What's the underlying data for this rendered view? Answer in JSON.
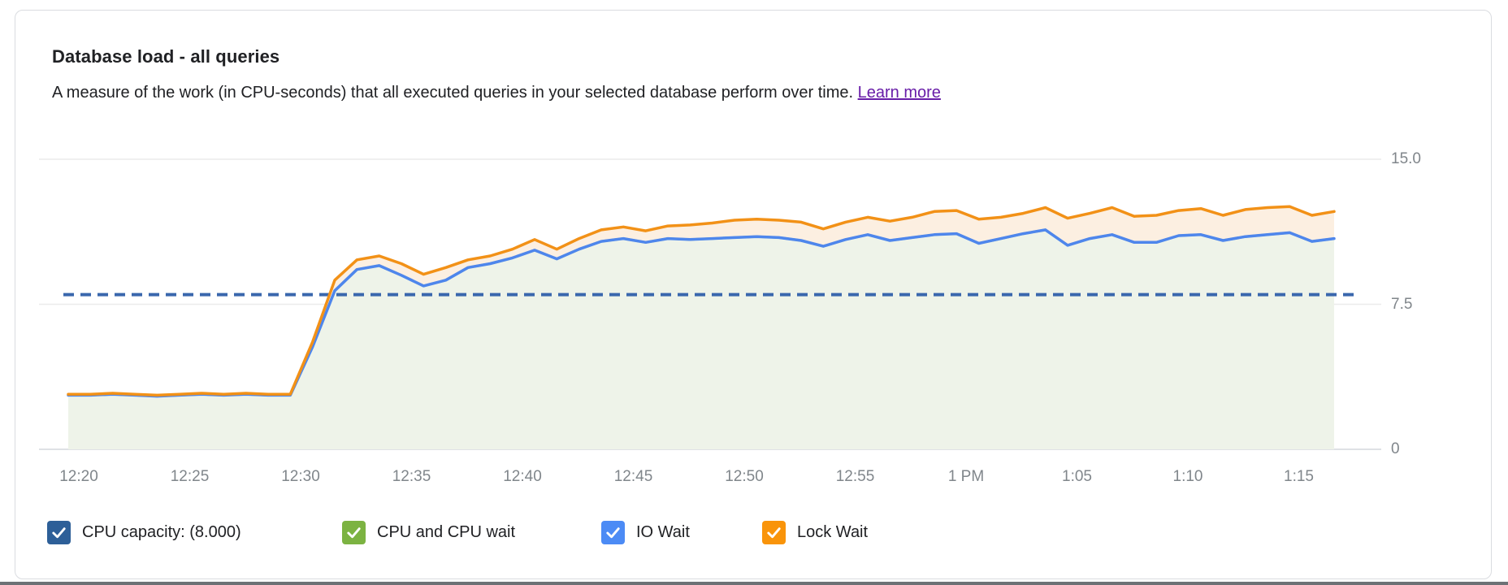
{
  "card": {
    "subtitle": "A measure of the work (in CPU-seconds) that all executed queries in your selected database perform over time.",
    "learn_more": "Learn more"
  },
  "legend": {
    "items": [
      {
        "label": "CPU capacity: (8.000)",
        "color": "#2d5f98",
        "checked": true
      },
      {
        "label": "CPU and CPU wait",
        "color": "#7cb342",
        "checked": true
      },
      {
        "label": "IO Wait",
        "color": "#4c8bf5",
        "checked": true
      },
      {
        "label": "Lock Wait",
        "color": "#f9940a",
        "checked": true
      }
    ]
  },
  "chart_data": {
    "type": "area",
    "title": "Database load - all queries",
    "ylabel": "",
    "xlabel": "",
    "ylim": [
      0,
      15
    ],
    "grid": true,
    "legend_position": "bottom",
    "stacking_note": "stacked area chart; series values below are cumulative stack tops as rendered (CPU-seconds); CPU-and-CPU-wait top visually coincides with IO Wait line",
    "sample_start": "12:19:30 PM",
    "sample_interval_seconds": 60,
    "y_axis": {
      "ticks": [
        {
          "label": "15.0",
          "value": 15
        },
        {
          "label": "7.5",
          "value": 7.5
        },
        {
          "label": "0",
          "value": 0
        }
      ]
    },
    "x_axis": {
      "tick_labels": [
        "12:20",
        "12:25",
        "12:30",
        "12:35",
        "12:40",
        "12:45",
        "12:50",
        "12:55",
        "1 PM",
        "1:05",
        "1:10",
        "1:15"
      ],
      "tick_interval_min": 5
    },
    "capacity_line": {
      "label": "CPU capacity: (8.000)",
      "value": 8.0,
      "style": "dashed",
      "color": "#3a67ad"
    },
    "series": [
      {
        "key": "cpu",
        "name": "CPU and CPU wait",
        "line_color": "#7cb342",
        "fill_color": "#eef3e9",
        "values": [
          2.8,
          2.8,
          2.85,
          2.8,
          2.75,
          2.8,
          2.85,
          2.8,
          2.85,
          2.8,
          2.8,
          5.3,
          8.2,
          9.3,
          9.5,
          9.0,
          8.45,
          8.75,
          9.4,
          9.6,
          9.9,
          10.3,
          9.85,
          10.35,
          10.75,
          10.9,
          10.7,
          10.9,
          10.85,
          10.9,
          10.95,
          11.0,
          10.95,
          10.8,
          10.5,
          10.85,
          11.1,
          10.8,
          10.95,
          11.1,
          11.15,
          10.65,
          10.9,
          11.15,
          11.35,
          10.55,
          10.9,
          11.1,
          10.7,
          10.7,
          11.05,
          11.1,
          10.8,
          11.0,
          11.1,
          11.2,
          10.75,
          10.9
        ]
      },
      {
        "key": "io",
        "name": "IO Wait",
        "line_color": "#4e86ec",
        "fill_color": "none",
        "values": [
          2.8,
          2.8,
          2.85,
          2.8,
          2.75,
          2.8,
          2.85,
          2.8,
          2.85,
          2.8,
          2.8,
          5.3,
          8.2,
          9.3,
          9.5,
          9.0,
          8.45,
          8.75,
          9.4,
          9.6,
          9.9,
          10.3,
          9.85,
          10.35,
          10.75,
          10.9,
          10.7,
          10.9,
          10.85,
          10.9,
          10.95,
          11.0,
          10.95,
          10.8,
          10.5,
          10.85,
          11.1,
          10.8,
          10.95,
          11.1,
          11.15,
          10.65,
          10.9,
          11.15,
          11.35,
          10.55,
          10.9,
          11.1,
          10.7,
          10.7,
          11.05,
          11.1,
          10.8,
          11.0,
          11.1,
          11.2,
          10.75,
          10.9
        ]
      },
      {
        "key": "lock",
        "name": "Lock Wait",
        "line_color": "#f29117",
        "fill_color": "#fcefe1",
        "values": [
          2.85,
          2.85,
          2.9,
          2.85,
          2.8,
          2.85,
          2.9,
          2.85,
          2.9,
          2.85,
          2.85,
          5.55,
          8.75,
          9.8,
          10.0,
          9.6,
          9.05,
          9.4,
          9.8,
          10.0,
          10.35,
          10.85,
          10.35,
          10.9,
          11.35,
          11.5,
          11.3,
          11.55,
          11.6,
          11.7,
          11.85,
          11.9,
          11.85,
          11.75,
          11.4,
          11.75,
          12.0,
          11.8,
          12.0,
          12.3,
          12.35,
          11.9,
          12.0,
          12.2,
          12.5,
          11.95,
          12.2,
          12.5,
          12.05,
          12.1,
          12.35,
          12.45,
          12.1,
          12.4,
          12.5,
          12.55,
          12.1,
          12.3
        ]
      }
    ]
  }
}
